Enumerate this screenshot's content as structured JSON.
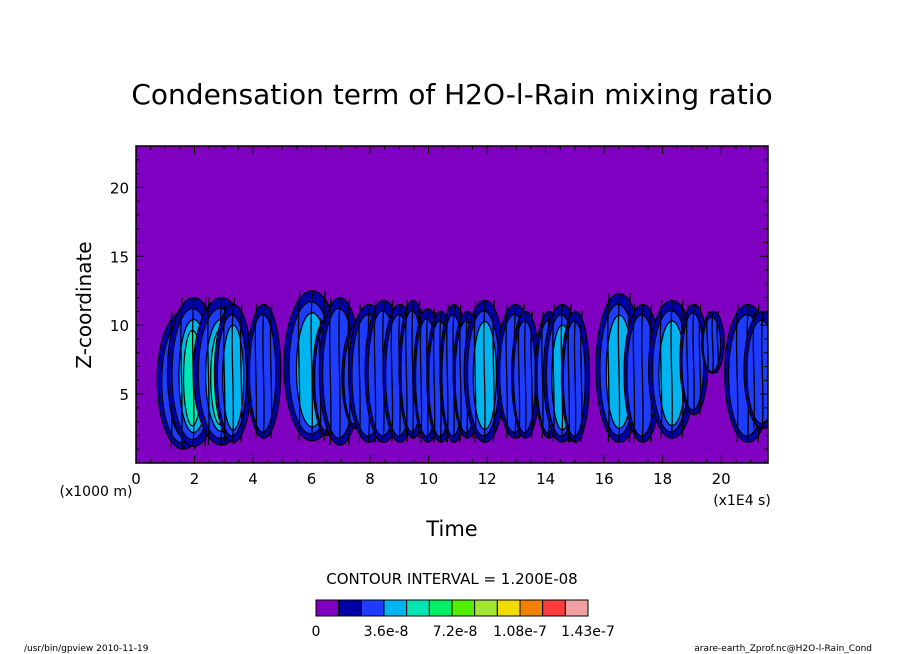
{
  "chart_data": {
    "type": "heatmap",
    "title": "Condensation term of H2O-l-Rain mixing ratio",
    "xlabel": "Time",
    "ylabel": "Z-coordinate",
    "x_unit_note": "(x1E4 s)",
    "y_unit_note": "(x1000 m)",
    "xlim": [
      0,
      21.6
    ],
    "ylim": [
      0,
      23
    ],
    "x_ticks": [
      0,
      2,
      4,
      6,
      8,
      10,
      12,
      14,
      16,
      18,
      20
    ],
    "y_ticks": [
      5,
      10,
      15,
      20
    ],
    "contour_interval_text": "CONTOUR INTERVAL = 1.200E-08",
    "colorbar": {
      "colors": [
        "#7f00c0",
        "#0000a8",
        "#1e3cff",
        "#00b4f0",
        "#00e6b4",
        "#00f064",
        "#50f000",
        "#a0e632",
        "#f0dc00",
        "#f08200",
        "#fa3c3c",
        "#f0a0a0"
      ],
      "labels": [
        "0",
        "3.6e-8",
        "7.2e-8",
        "1.08e-7",
        "1.43e-7"
      ]
    },
    "events": [
      {
        "t": 1.6,
        "w": 0.28,
        "z0": 1.0,
        "z1": 11.0,
        "level": 5
      },
      {
        "t": 1.95,
        "w": 0.28,
        "z0": 1.2,
        "z1": 12.0,
        "level": 4
      },
      {
        "t": 2.9,
        "w": 0.3,
        "z0": 1.3,
        "z1": 12.0,
        "level": 4
      },
      {
        "t": 3.3,
        "w": 0.2,
        "z0": 1.5,
        "z1": 11.5,
        "level": 3
      },
      {
        "t": 4.35,
        "w": 0.18,
        "z0": 1.8,
        "z1": 11.5,
        "level": 2
      },
      {
        "t": 6.0,
        "w": 0.3,
        "z0": 1.6,
        "z1": 12.5,
        "level": 3
      },
      {
        "t": 6.5,
        "w": 0.15,
        "z0": 2.0,
        "z1": 10.5,
        "level": 2
      },
      {
        "t": 6.95,
        "w": 0.22,
        "z0": 1.3,
        "z1": 12.0,
        "level": 2
      },
      {
        "t": 7.5,
        "w": 0.15,
        "z0": 2.5,
        "z1": 10.0,
        "level": 2
      },
      {
        "t": 7.95,
        "w": 0.22,
        "z0": 1.5,
        "z1": 11.5,
        "level": 2
      },
      {
        "t": 8.45,
        "w": 0.2,
        "z0": 1.5,
        "z1": 11.8,
        "level": 2
      },
      {
        "t": 9.0,
        "w": 0.18,
        "z0": 1.5,
        "z1": 11.5,
        "level": 2
      },
      {
        "t": 9.45,
        "w": 0.15,
        "z0": 1.8,
        "z1": 11.8,
        "level": 2
      },
      {
        "t": 9.95,
        "w": 0.15,
        "z0": 1.5,
        "z1": 11.2,
        "level": 2
      },
      {
        "t": 10.4,
        "w": 0.15,
        "z0": 1.5,
        "z1": 11.0,
        "level": 2
      },
      {
        "t": 10.85,
        "w": 0.15,
        "z0": 1.5,
        "z1": 11.5,
        "level": 2
      },
      {
        "t": 11.3,
        "w": 0.15,
        "z0": 1.8,
        "z1": 11.0,
        "level": 2
      },
      {
        "t": 11.9,
        "w": 0.22,
        "z0": 1.5,
        "z1": 11.8,
        "level": 3
      },
      {
        "t": 12.95,
        "w": 0.2,
        "z0": 1.8,
        "z1": 11.5,
        "level": 2
      },
      {
        "t": 13.3,
        "w": 0.15,
        "z0": 1.8,
        "z1": 11.0,
        "level": 2
      },
      {
        "t": 14.1,
        "w": 0.15,
        "z0": 1.8,
        "z1": 11.0,
        "level": 2
      },
      {
        "t": 14.55,
        "w": 0.2,
        "z0": 1.5,
        "z1": 11.5,
        "level": 3
      },
      {
        "t": 15.0,
        "w": 0.15,
        "z0": 1.5,
        "z1": 11.0,
        "level": 2
      },
      {
        "t": 16.5,
        "w": 0.25,
        "z0": 1.5,
        "z1": 12.3,
        "level": 3
      },
      {
        "t": 17.3,
        "w": 0.2,
        "z0": 1.5,
        "z1": 11.5,
        "level": 2
      },
      {
        "t": 18.3,
        "w": 0.25,
        "z0": 1.8,
        "z1": 11.8,
        "level": 3
      },
      {
        "t": 19.05,
        "w": 0.15,
        "z0": 3.5,
        "z1": 11.5,
        "level": 2
      },
      {
        "t": 19.7,
        "w": 0.12,
        "z0": 6.5,
        "z1": 11.0,
        "level": 2
      },
      {
        "t": 20.9,
        "w": 0.25,
        "z0": 1.5,
        "z1": 11.5,
        "level": 2
      },
      {
        "t": 21.4,
        "w": 0.2,
        "z0": 2.5,
        "z1": 11.0,
        "level": 2
      }
    ]
  },
  "footer": {
    "left": "/usr/bin/gpview  2010-11-19",
    "right": "arare-earth_Zprof.nc@H2O-l-Rain_Cond"
  }
}
